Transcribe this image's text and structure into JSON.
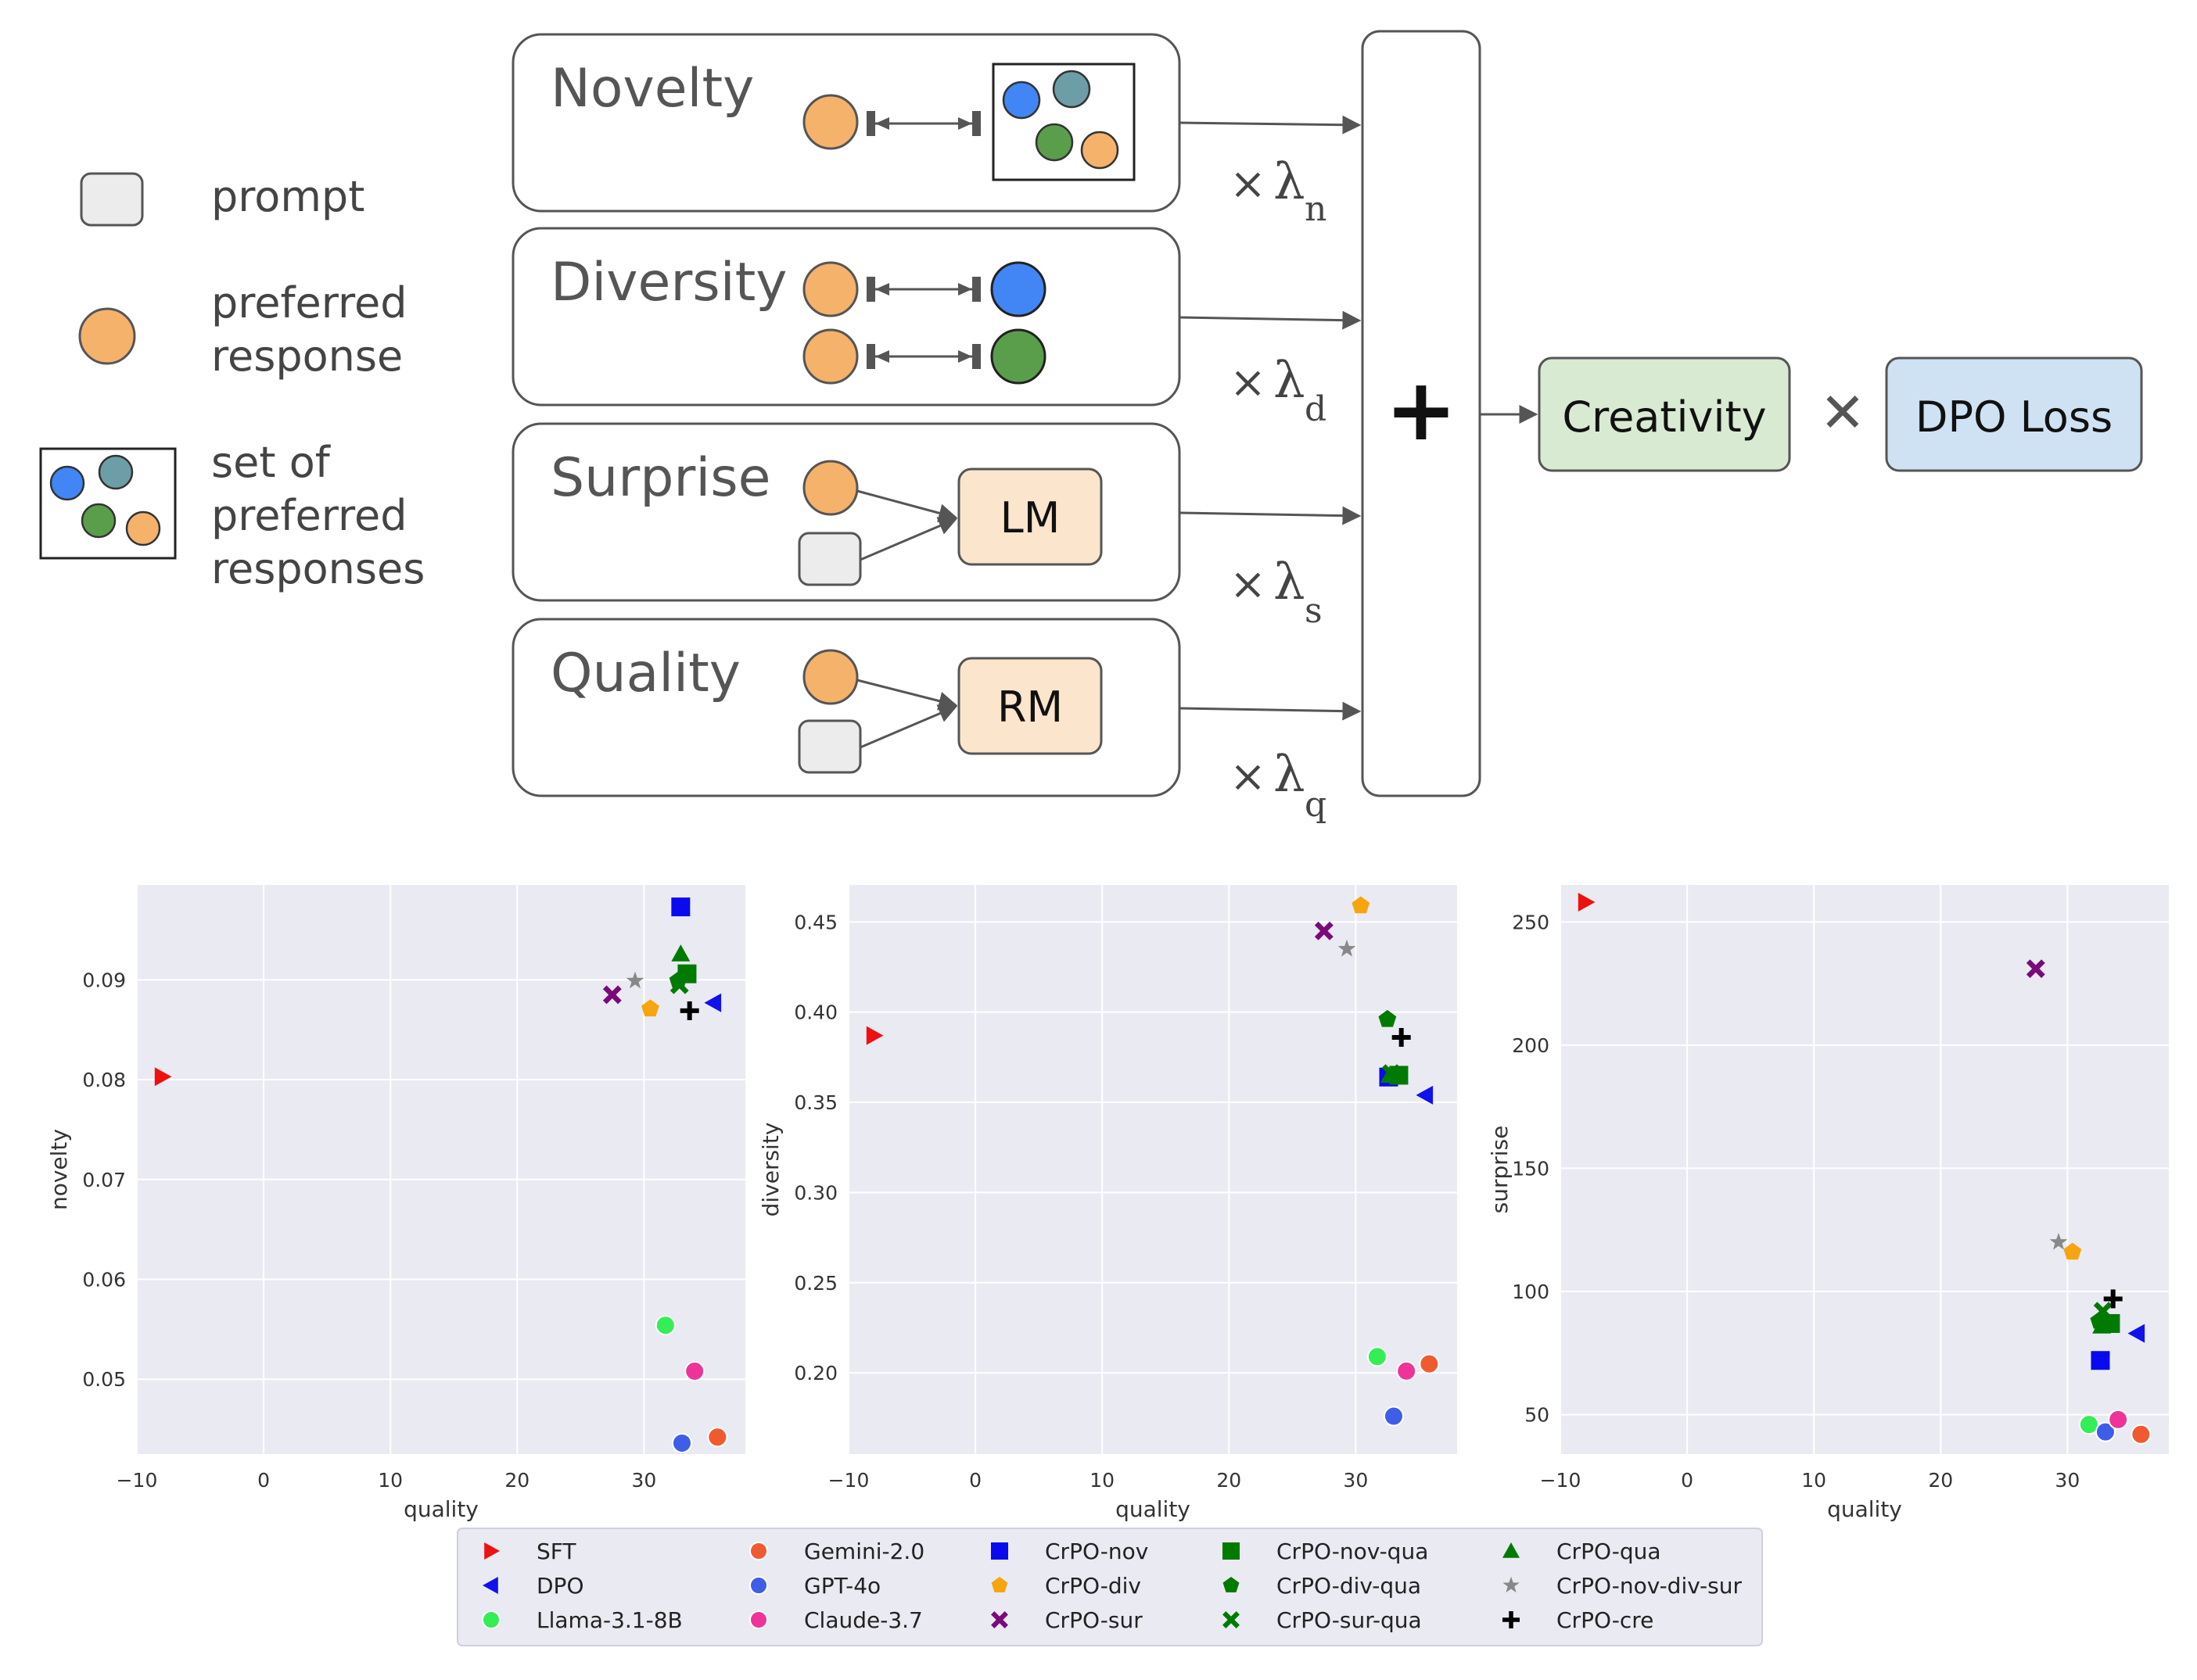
{
  "legend_top": {
    "prompt": "prompt",
    "preferred_response": [
      "preferred",
      "response"
    ],
    "set_of_preferred": [
      "set of",
      "preferred",
      "responses"
    ]
  },
  "components": {
    "novelty": "Novelty",
    "diversity": "Diversity",
    "surprise": "Surprise",
    "quality": "Quality",
    "lm": "LM",
    "rm": "RM"
  },
  "weights": {
    "times": "×",
    "lambda": "λ",
    "n": "n",
    "d": "d",
    "s": "s",
    "q": "q"
  },
  "combine": {
    "plus": "+",
    "creativity": "Creativity",
    "multiply": "✕",
    "dpo_loss": "DPO Loss"
  },
  "colors": {
    "preferred": "#f5b26b",
    "blue": "#4285f4",
    "teal": "#6d9ea7",
    "green": "#5a9e4c",
    "prompt_fill": "#ececec",
    "model_fill": "#fce5cd",
    "creativity_fill": "#d9ead3",
    "dpo_fill": "#cfe2f3",
    "plot_bg": "#eaeaf2"
  },
  "chart_data": [
    {
      "type": "scatter",
      "xlabel": "quality",
      "ylabel": "novelty",
      "xlim": [
        -10,
        38
      ],
      "ylim": [
        0.0425,
        0.0995
      ],
      "xticks": [
        "−10",
        "0",
        "10",
        "20",
        "30"
      ],
      "yticks": [
        "0.05",
        "0.06",
        "0.07",
        "0.08",
        "0.09"
      ],
      "points": [
        {
          "series": "SFT",
          "x": -8.0,
          "y": 0.0803
        },
        {
          "series": "DPO",
          "x": 35.5,
          "y": 0.0877
        },
        {
          "series": "Llama-3.1-8B",
          "x": 31.7,
          "y": 0.0554
        },
        {
          "series": "Gemini-2.0",
          "x": 35.8,
          "y": 0.0442
        },
        {
          "series": "GPT-4o",
          "x": 33.0,
          "y": 0.0436
        },
        {
          "series": "Claude-3.7",
          "x": 34.0,
          "y": 0.0508
        },
        {
          "series": "CrPO-nov",
          "x": 32.9,
          "y": 0.0973
        },
        {
          "series": "CrPO-div",
          "x": 30.5,
          "y": 0.0871
        },
        {
          "series": "CrPO-sur",
          "x": 27.5,
          "y": 0.0885
        },
        {
          "series": "CrPO-nov-qua",
          "x": 33.4,
          "y": 0.0906
        },
        {
          "series": "CrPO-div-qua",
          "x": 32.7,
          "y": 0.0899
        },
        {
          "series": "CrPO-sur-qua",
          "x": 32.8,
          "y": 0.0895
        },
        {
          "series": "CrPO-qua",
          "x": 32.9,
          "y": 0.0926
        },
        {
          "series": "CrPO-nov-div-sur",
          "x": 29.3,
          "y": 0.0899
        },
        {
          "series": "CrPO-cre",
          "x": 33.6,
          "y": 0.0869
        }
      ]
    },
    {
      "type": "scatter",
      "xlabel": "quality",
      "ylabel": "diversity",
      "xlim": [
        -10,
        38
      ],
      "ylim": [
        0.155,
        0.4705
      ],
      "xticks": [
        "−10",
        "0",
        "10",
        "20",
        "30"
      ],
      "yticks": [
        "0.20",
        "0.25",
        "0.30",
        "0.35",
        "0.40",
        "0.45"
      ],
      "points": [
        {
          "series": "SFT",
          "x": -8.0,
          "y": 0.387
        },
        {
          "series": "DPO",
          "x": 35.5,
          "y": 0.354
        },
        {
          "series": "Llama-3.1-8B",
          "x": 31.7,
          "y": 0.209
        },
        {
          "series": "Gemini-2.0",
          "x": 35.8,
          "y": 0.205
        },
        {
          "series": "GPT-4o",
          "x": 33.0,
          "y": 0.176
        },
        {
          "series": "Claude-3.7",
          "x": 34.0,
          "y": 0.201
        },
        {
          "series": "CrPO-nov",
          "x": 32.6,
          "y": 0.364
        },
        {
          "series": "CrPO-div",
          "x": 30.4,
          "y": 0.459
        },
        {
          "series": "CrPO-sur",
          "x": 27.5,
          "y": 0.445
        },
        {
          "series": "CrPO-nov-qua",
          "x": 33.4,
          "y": 0.365
        },
        {
          "series": "CrPO-div-qua",
          "x": 32.5,
          "y": 0.396
        },
        {
          "series": "CrPO-sur-qua",
          "x": 32.8,
          "y": 0.366
        },
        {
          "series": "CrPO-qua",
          "x": 32.7,
          "y": 0.365
        },
        {
          "series": "CrPO-nov-div-sur",
          "x": 29.3,
          "y": 0.435
        },
        {
          "series": "CrPO-cre",
          "x": 33.6,
          "y": 0.386
        }
      ]
    },
    {
      "type": "scatter",
      "xlabel": "quality",
      "ylabel": "surprise",
      "xlim": [
        -10,
        38
      ],
      "ylim": [
        34,
        265
      ],
      "xticks": [
        "−10",
        "0",
        "10",
        "20",
        "30"
      ],
      "yticks": [
        "50",
        "100",
        "150",
        "200",
        "250"
      ],
      "points": [
        {
          "series": "SFT",
          "x": -8.0,
          "y": 258
        },
        {
          "series": "DPO",
          "x": 35.5,
          "y": 83
        },
        {
          "series": "Llama-3.1-8B",
          "x": 31.7,
          "y": 46
        },
        {
          "series": "Gemini-2.0",
          "x": 35.8,
          "y": 42
        },
        {
          "series": "GPT-4o",
          "x": 33.0,
          "y": 43
        },
        {
          "series": "Claude-3.7",
          "x": 34.0,
          "y": 48
        },
        {
          "series": "CrPO-nov",
          "x": 32.6,
          "y": 72
        },
        {
          "series": "CrPO-div",
          "x": 30.4,
          "y": 116
        },
        {
          "series": "CrPO-sur",
          "x": 27.5,
          "y": 231
        },
        {
          "series": "CrPO-nov-qua",
          "x": 33.4,
          "y": 87
        },
        {
          "series": "CrPO-div-qua",
          "x": 32.5,
          "y": 88
        },
        {
          "series": "CrPO-sur-qua",
          "x": 32.8,
          "y": 92
        },
        {
          "series": "CrPO-qua",
          "x": 32.7,
          "y": 86
        },
        {
          "series": "CrPO-nov-div-sur",
          "x": 29.3,
          "y": 120
        },
        {
          "series": "CrPO-cre",
          "x": 33.6,
          "y": 97
        }
      ]
    }
  ],
  "chart_legend": [
    {
      "name": "SFT",
      "marker": "tri-right",
      "color": "#ee1111"
    },
    {
      "name": "DPO",
      "marker": "tri-left",
      "color": "#1111ee"
    },
    {
      "name": "Llama-3.1-8B",
      "marker": "circle",
      "color": "#33ee55"
    },
    {
      "name": "Gemini-2.0",
      "marker": "circle",
      "color": "#f05a30"
    },
    {
      "name": "GPT-4o",
      "marker": "circle",
      "color": "#3e5ee8"
    },
    {
      "name": "Claude-3.7",
      "marker": "circle",
      "color": "#ee3399"
    },
    {
      "name": "CrPO-nov",
      "marker": "square",
      "color": "#0a0aee"
    },
    {
      "name": "CrPO-div",
      "marker": "pentagon",
      "color": "#f6a50f"
    },
    {
      "name": "CrPO-sur",
      "marker": "x",
      "color": "#7a0a7a"
    },
    {
      "name": "CrPO-nov-qua",
      "marker": "square",
      "color": "#007a00"
    },
    {
      "name": "CrPO-div-qua",
      "marker": "pentagon",
      "color": "#007a00"
    },
    {
      "name": "CrPO-sur-qua",
      "marker": "x",
      "color": "#007a00"
    },
    {
      "name": "CrPO-qua",
      "marker": "tri-up",
      "color": "#007a00"
    },
    {
      "name": "CrPO-nov-div-sur",
      "marker": "star",
      "color": "#888888"
    },
    {
      "name": "CrPO-cre",
      "marker": "plus",
      "color": "#000000"
    }
  ]
}
